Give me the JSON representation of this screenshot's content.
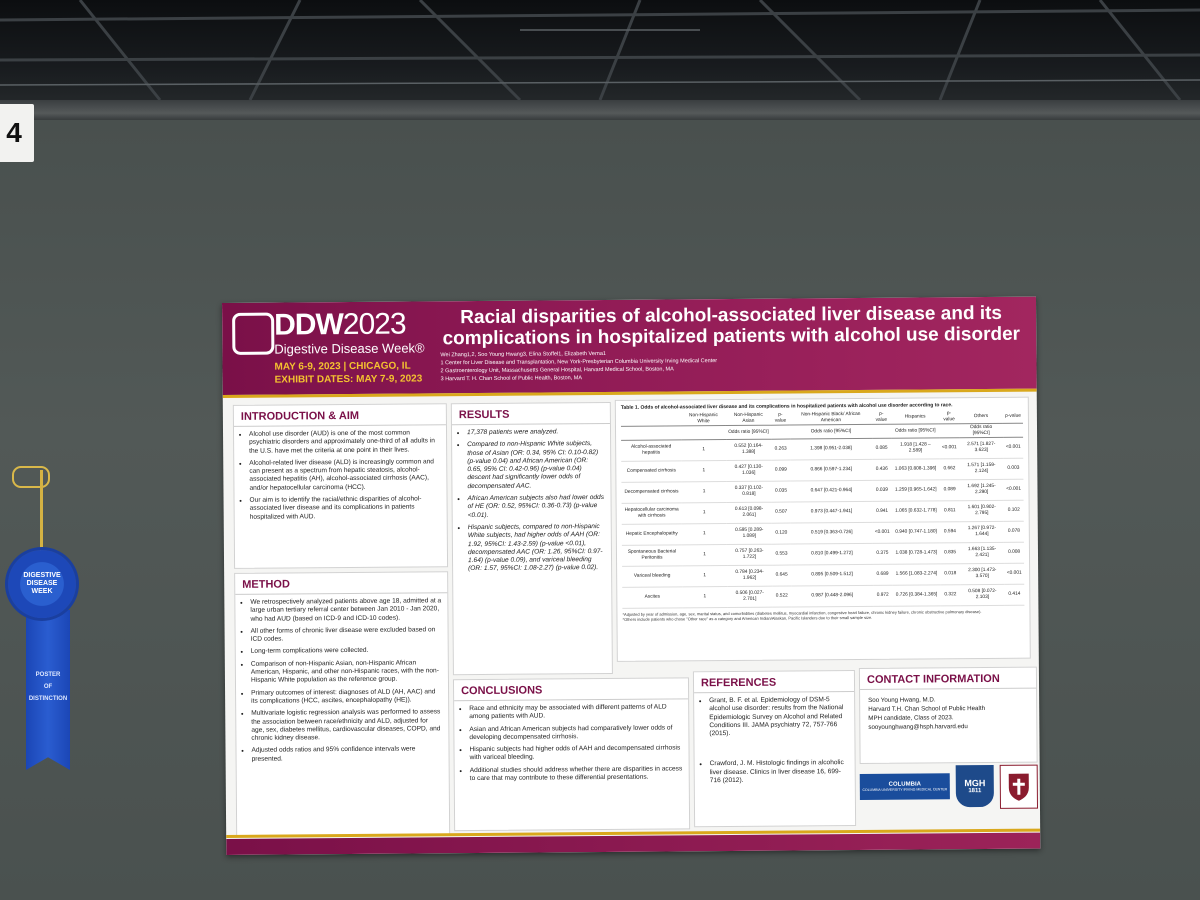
{
  "board": {
    "number": "4"
  },
  "ribbon": {
    "rosette_text": "DIGESTIVE DISEASE WEEK",
    "tail_line1": "POSTER",
    "tail_line2": "OF",
    "tail_line3": "DISTINCTION"
  },
  "poster": {
    "logo": {
      "brand": "DDW",
      "year": "2023",
      "subtitle": "Digestive Disease Week®",
      "dates": "MAY 6-9, 2023 | CHICAGO, IL",
      "exhibit": "EXHIBIT DATES: MAY 7-9, 2023"
    },
    "title": "Racial disparities of alcohol-associated liver disease and its complications in hospitalized patients with alcohol use disorder",
    "authors": "Wei Zhang1,2, Soo Young Hwang3, Elina Stoffel1, Elizabeth Verna1",
    "affiliations": [
      "1 Center for Liver Disease and Transplantation, New York-Presbyterian Columbia University Irving Medical Center",
      "2 Gastroenterology Unit, Massachusetts General Hospital, Harvard Medical School, Boston, MA",
      "3 Harvard T. H. Chan School of Public Health, Boston, MA"
    ],
    "intro": {
      "heading": "INTRODUCTION & AIM",
      "items": [
        "Alcohol use disorder (AUD) is one of the most common psychiatric disorders and approximately one-third of all adults in the U.S. have met the criteria at one point in their lives.",
        "Alcohol-related liver disease (ALD) is increasingly common and can present as a spectrum from hepatic steatosis, alcohol-associated hepatitis (AH), alcohol-associated cirrhosis (AAC), and/or hepatocellular carcinoma (HCC).",
        "Our aim is to identify the racial/ethnic disparities of alcohol-associated liver disease and its complications in patients hospitalized with AUD."
      ]
    },
    "method": {
      "heading": "METHOD",
      "items": [
        "We retrospectively analyzed patients above age 18, admitted at a large urban tertiary referral center between Jan 2010 - Jan 2020, who had AUD (based on ICD-9 and ICD-10 codes).",
        "All other forms of chronic liver disease were excluded based on ICD codes.",
        "Long-term complications were collected.",
        "Comparison of non-Hispanic Asian, non-Hispanic African American, Hispanic, and other non-Hispanic races, with the non-Hispanic White population as the reference group.",
        "Primary outcomes of interest: diagnoses of ALD (AH, AAC) and its complications (HCC, ascites, encephalopathy (HE)).",
        "Multivariate logistic regression analysis was performed to assess the association between race/ethnicity and ALD, adjusted for age, sex, diabetes mellitus, cardiovascular diseases, COPD, and chronic kidney disease.",
        "Adjusted odds ratios and 95% confidence intervals were presented."
      ]
    },
    "results": {
      "heading": "RESULTS",
      "items": [
        "17,378 patients were analyzed.",
        "Compared to non-Hispanic White subjects, those of Asian (OR: 0.34, 95% CI: 0.10-0.82) (p-value 0.04) and African American (OR: 0.65, 95% CI: 0.42-0.96) (p-value 0.04) descent had significantly lower odds of decompensated AAC.",
        "African American subjects also had lower odds of HE (OR: 0.52, 95%CI: 0.36-0.73) (p-value <0.01).",
        "Hispanic subjects, compared to non-Hispanic White subjects, had higher odds of AAH (OR: 1.92, 95%CI: 1.43-2.59) (p-value <0.01), decompensated AAC (OR: 1.26, 95%CI: 0.97-1.64) (p-value 0.09), and variceal bleeding (OR: 1.57, 95%CI: 1.08-2.27) (p-value 0.02)."
      ]
    },
    "table": {
      "caption": "Table 1. Odds of alcohol-associated liver disease and its complications in hospitalized patients with alcohol use disorder according to race.",
      "headers": [
        "",
        "Non-Hispanic White",
        "Non-Hispanic Asian",
        "p-value",
        "Non-Hispanic Black/ African American",
        "p-value",
        "Hispanics",
        "p-value",
        "Others",
        "p-value"
      ],
      "subheader": "Odds ratio [95%CI]",
      "rows": [
        [
          "Alcohol-associated hepatitis",
          "1",
          "0.552 [0.164-1.388]",
          "0.263",
          "1.398 [0.951-2.038]",
          "0.085",
          "1.918 [1.428 – 2.589]",
          "<0.001",
          "2.571 [1.827-3.623]",
          "<0.001"
        ],
        [
          "Compensated cirrhosis",
          "1",
          "0.427 [0.130-1.036]",
          "0.099",
          "0.866 [0.597-1.234]",
          "0.436",
          "1.063 [0.808-1.396]",
          "0.662",
          "1.571 [1.159-2.124]",
          "0.003"
        ],
        [
          "Decompensated cirrhosis",
          "1",
          "0.337 [0.102-0.818]",
          "0.035",
          "0.647 [0.421-0.964]",
          "0.039",
          "1.259 [0.965-1.642]",
          "0.089",
          "1.692 [1.245-2.290]",
          "<0.001"
        ],
        [
          "Hepatocellular carcinoma with cirrhosis",
          "1",
          "0.613 [0.098-2.061]",
          "0.507",
          "0.973 [0.447-1.941]",
          "0.941",
          "1.065 [0.632-1.778]",
          "0.811",
          "1.601 [0.902-2.795]",
          "0.102"
        ],
        [
          "Hepatic Encephalopathy",
          "1",
          "0.595 [0.289-1.089]",
          "0.120",
          "0.519 [0.363-0.726]",
          "<0.001",
          "0.940 [0.747-1.180]",
          "0.594",
          "1.267 [0.972-1.644]",
          "0.078"
        ],
        [
          "Spontaneous Bacterial Peritonitis",
          "1",
          "0.757 [0.263-1.722]",
          "0.553",
          "0.810 [0.499-1.272]",
          "0.375",
          "1.038 [0.728-1.473]",
          "0.835",
          "1.663 [1.135-2.421]",
          "0.008"
        ],
        [
          "Variceal bleeding",
          "1",
          "0.784 [0.234-1.962]",
          "0.645",
          "0.895 [0.509-1.512]",
          "0.689",
          "1.566 [1.083-2.274]",
          "0.018",
          "2.300 [1.473-3.570]",
          "<0.001"
        ],
        [
          "Ascites",
          "1",
          "0.506 [0.027-2.701]",
          "0.522",
          "0.987 [0.448-2.096]",
          "0.972",
          "0.726 [0.384-1.365]",
          "0.322",
          "0.508 [0.072-2.103]",
          "0.414"
        ]
      ],
      "note1": "*Adjusted by year of admission, age, sex, marital status, and comorbidities (diabetes mellitus, myocardial infarction, congestive heart failure, chronic kidney failure, chronic obstructive pulmonary disease).",
      "note2": "*Others include patients who chose \"Other race\" as a category and American Indian/Alaskan, Pacific Islanders due to their small sample size."
    },
    "conclusions": {
      "heading": "CONCLUSIONS",
      "items": [
        "Race and ethnicity may be associated with different patterns of ALD among patients with AUD.",
        "Asian and African American subjects had comparatively lower odds of developing decompensated cirrhosis.",
        "Hispanic subjects had higher odds of AAH and decompensated cirrhosis with variceal bleeding.",
        "Additional studies should address whether there are disparities in access to care that may contribute to these differential presentations."
      ]
    },
    "references": {
      "heading": "REFERENCES",
      "items": [
        "Grant, B. F. et al. Epidemiology of DSM-5 alcohol use disorder: results from the National Epidemiologic Survey on Alcohol and Related Conditions III. JAMA psychiatry 72, 757-766 (2015).",
        "Crawford, J. M. Histologic findings in alcoholic liver disease. Clinics in liver disease 16, 699-716 (2012)."
      ]
    },
    "contact": {
      "heading": "CONTACT INFORMATION",
      "lines": [
        "Soo Young Hwang, M.D.",
        "Harvard T.H. Chan School of Public Health",
        "MPH candidate, Class of 2023.",
        "sooyounghwang@hsph.harvard.edu"
      ]
    },
    "logos": {
      "columbia": "COLUMBIA",
      "columbia_sub": "COLUMBIA UNIVERSITY IRVING MEDICAL CENTER",
      "mgh": "MGH",
      "mgh_year": "1811"
    },
    "colors": {
      "banner": "#8f1a55",
      "accent_gold": "#d9a81c",
      "heading": "#7a1048"
    }
  }
}
